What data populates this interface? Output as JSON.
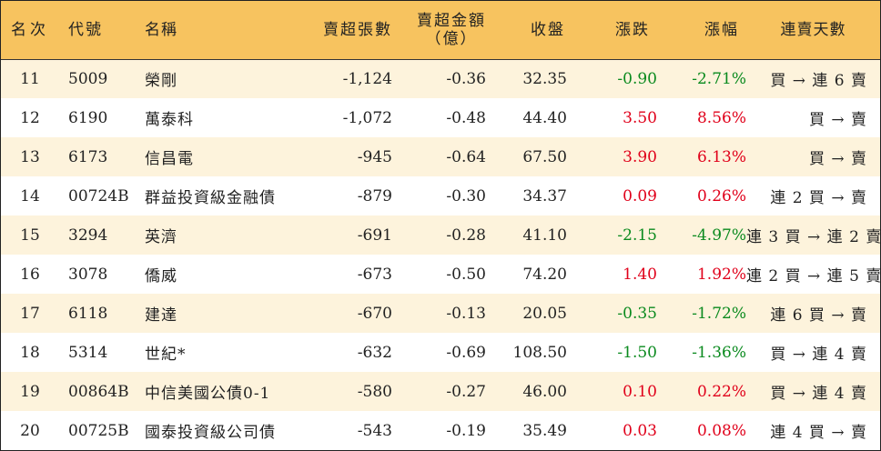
{
  "headers": {
    "rank": "名次",
    "code": "代號",
    "name": "名稱",
    "net_sell_lots": "賣超張數",
    "net_sell_amount_line1": "賣超金額",
    "net_sell_amount_line2": "（億）",
    "close": "收盤",
    "change": "漲跌",
    "change_pct": "漲幅",
    "streak": "連賣天數"
  },
  "colors": {
    "header_bg": "#f7c35f",
    "stripe_bg": "#fdf3dc",
    "up": "#e0001a",
    "down": "#0a8a1e"
  },
  "rows": [
    {
      "rank": "11",
      "code": "5009",
      "name": "榮剛",
      "lots": "-1,124",
      "amount": "-0.36",
      "close": "32.35",
      "change": "-0.90",
      "pct": "-2.71%",
      "dir": "down",
      "streak": "買 → 連 6 賣"
    },
    {
      "rank": "12",
      "code": "6190",
      "name": "萬泰科",
      "lots": "-1,072",
      "amount": "-0.48",
      "close": "44.40",
      "change": "3.50",
      "pct": "8.56%",
      "dir": "up",
      "streak": "買 → 賣"
    },
    {
      "rank": "13",
      "code": "6173",
      "name": "信昌電",
      "lots": "-945",
      "amount": "-0.64",
      "close": "67.50",
      "change": "3.90",
      "pct": "6.13%",
      "dir": "up",
      "streak": "買 → 賣"
    },
    {
      "rank": "14",
      "code": "00724B",
      "name": "群益投資級金融債",
      "lots": "-879",
      "amount": "-0.30",
      "close": "34.37",
      "change": "0.09",
      "pct": "0.26%",
      "dir": "up",
      "streak": "連 2 買 → 賣"
    },
    {
      "rank": "15",
      "code": "3294",
      "name": "英濟",
      "lots": "-691",
      "amount": "-0.28",
      "close": "41.10",
      "change": "-2.15",
      "pct": "-4.97%",
      "dir": "down",
      "streak": "連 3 買 → 連 2 賣"
    },
    {
      "rank": "16",
      "code": "3078",
      "name": "僑威",
      "lots": "-673",
      "amount": "-0.50",
      "close": "74.20",
      "change": "1.40",
      "pct": "1.92%",
      "dir": "up",
      "streak": "連 2 買 → 連 5 賣"
    },
    {
      "rank": "17",
      "code": "6118",
      "name": "建達",
      "lots": "-670",
      "amount": "-0.13",
      "close": "20.05",
      "change": "-0.35",
      "pct": "-1.72%",
      "dir": "down",
      "streak": "連 6 買 → 賣"
    },
    {
      "rank": "18",
      "code": "5314",
      "name": "世紀*",
      "lots": "-632",
      "amount": "-0.69",
      "close": "108.50",
      "change": "-1.50",
      "pct": "-1.36%",
      "dir": "down",
      "streak": "買 → 連 4 賣"
    },
    {
      "rank": "19",
      "code": "00864B",
      "name": "中信美國公債0-1",
      "lots": "-580",
      "amount": "-0.27",
      "close": "46.00",
      "change": "0.10",
      "pct": "0.22%",
      "dir": "up",
      "streak": "買 → 連 4 賣"
    },
    {
      "rank": "20",
      "code": "00725B",
      "name": "國泰投資級公司債",
      "lots": "-543",
      "amount": "-0.19",
      "close": "35.49",
      "change": "0.03",
      "pct": "0.08%",
      "dir": "up",
      "streak": "連 4 買 → 賣"
    }
  ]
}
